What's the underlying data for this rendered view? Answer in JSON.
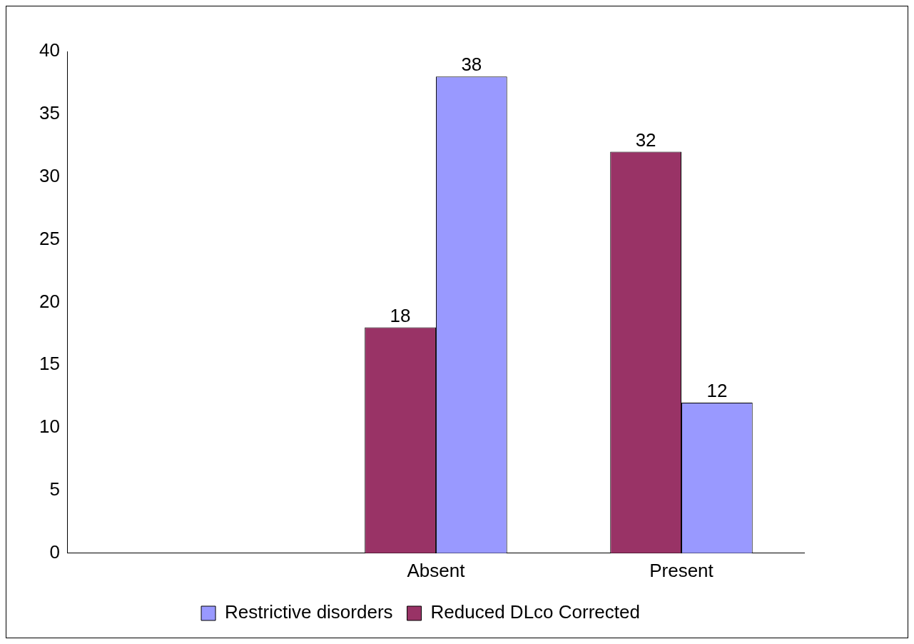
{
  "chart_data": {
    "type": "bar",
    "categories": [
      null,
      "Absent",
      "Present"
    ],
    "series": [
      {
        "name": "Reduced DLco Corrected",
        "color": "#993366",
        "values": [
          null,
          18,
          32
        ]
      },
      {
        "name": "Restrictive disorders",
        "color": "#9999ff",
        "values": [
          null,
          38,
          12
        ]
      }
    ],
    "ylim": [
      0,
      40
    ],
    "yticks": [
      0,
      5,
      10,
      15,
      20,
      25,
      30,
      35,
      40
    ],
    "grid": false,
    "legend": "bottom",
    "data_labels": true
  }
}
